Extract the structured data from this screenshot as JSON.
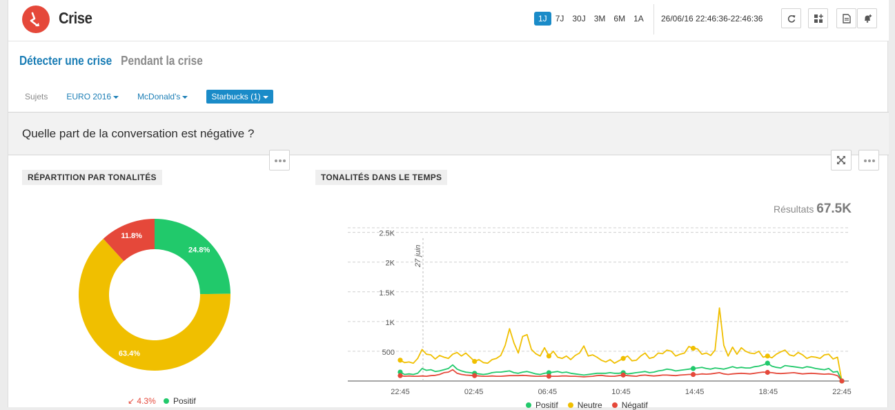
{
  "header": {
    "title": "Crise",
    "periods": [
      "1J",
      "7J",
      "30J",
      "3M",
      "6M",
      "1A"
    ],
    "active_period": "1J",
    "date_range": "26/06/16 22:46:36-22:46:36"
  },
  "tabs": [
    {
      "label": "Détecter une crise",
      "active": true
    },
    {
      "label": "Pendant la crise",
      "active": false
    }
  ],
  "subjects": {
    "label": "Sujets",
    "filters": [
      {
        "label": "EURO 2016",
        "active": false
      },
      {
        "label": "McDonald's",
        "active": false
      },
      {
        "label": "Starbucks (1)",
        "active": true
      }
    ]
  },
  "question": "Quelle part de la conversation est négative ?",
  "panels": {
    "left_title": "RÉPARTITION PAR TONALITÉS",
    "right_title": "TONALITÉS DANS LE TEMPS",
    "results_label": "Résultats",
    "results_value": "67.5K",
    "trend_value": "4.3%",
    "left_legend": "Positif"
  },
  "colors": {
    "positive": "#21c96b",
    "neutral": "#f0bf00",
    "negative": "#e5483a",
    "accent": "#1a8bc8"
  },
  "chart_data": [
    {
      "type": "pie",
      "title": "RÉPARTITION PAR TONALITÉS",
      "slices": [
        {
          "name": "Positif",
          "value": 24.8,
          "label": "24.8%",
          "color": "#21c96b"
        },
        {
          "name": "Neutre",
          "value": 63.4,
          "label": "63.4%",
          "color": "#f0bf00"
        },
        {
          "name": "Négatif",
          "value": 11.8,
          "label": "11.8%",
          "color": "#e5483a"
        }
      ]
    },
    {
      "type": "line",
      "title": "TONALITÉS DANS LE TEMPS",
      "x_ticks": [
        "22:45",
        "02:45",
        "06:45",
        "10:45",
        "14:45",
        "18:45",
        "22:45"
      ],
      "y_ticks": [
        "500",
        "1K",
        "1.5K",
        "2K",
        "2.5K"
      ],
      "ylim": [
        0,
        2500
      ],
      "annotation": "27 juin",
      "legend": [
        "Positif",
        "Neutre",
        "Négatif"
      ],
      "series": [
        {
          "name": "Neutre",
          "color": "#f0bf00",
          "values": [
            350,
            310,
            320,
            300,
            380,
            530,
            450,
            440,
            370,
            430,
            400,
            380,
            450,
            480,
            420,
            470,
            400,
            330,
            360,
            310,
            300,
            360,
            380,
            430,
            600,
            880,
            640,
            470,
            750,
            780,
            530,
            460,
            420,
            560,
            420,
            500,
            400,
            380,
            420,
            360,
            430,
            470,
            590,
            420,
            440,
            400,
            350,
            320,
            360,
            300,
            340,
            380,
            420,
            340,
            350,
            420,
            470,
            380,
            400,
            470,
            460,
            520,
            500,
            420,
            450,
            470,
            580,
            550,
            540,
            450,
            470,
            430,
            520,
            1230,
            600,
            420,
            570,
            450,
            560,
            500,
            470,
            460,
            500,
            400,
            420,
            390,
            450,
            490,
            520,
            440,
            420,
            480,
            440,
            380,
            410,
            400,
            380,
            440,
            450,
            370,
            400,
            0
          ]
        },
        {
          "name": "Positif",
          "color": "#21c96b",
          "values": [
            150,
            110,
            120,
            110,
            130,
            210,
            180,
            190,
            160,
            170,
            190,
            210,
            270,
            200,
            170,
            150,
            140,
            130,
            120,
            110,
            120,
            140,
            150,
            150,
            160,
            170,
            140,
            130,
            150,
            160,
            140,
            120,
            110,
            130,
            140,
            150,
            160,
            140,
            150,
            130,
            120,
            110,
            100,
            110,
            120,
            130,
            130,
            130,
            140,
            130,
            130,
            140,
            120,
            130,
            140,
            150,
            160,
            140,
            150,
            170,
            180,
            200,
            190,
            170,
            180,
            190,
            200,
            210,
            220,
            230,
            210,
            200,
            220,
            210,
            200,
            220,
            240,
            220,
            230,
            220,
            220,
            240,
            250,
            270,
            300,
            250,
            230,
            220,
            260,
            250,
            240,
            230,
            220,
            240,
            230,
            210,
            200,
            190,
            210,
            150,
            160,
            0
          ]
        },
        {
          "name": "Négatif",
          "color": "#e5483a",
          "values": [
            90,
            80,
            85,
            80,
            80,
            85,
            80,
            90,
            95,
            110,
            140,
            150,
            190,
            130,
            110,
            100,
            95,
            90,
            85,
            80,
            80,
            85,
            80,
            80,
            85,
            90,
            90,
            90,
            95,
            90,
            85,
            80,
            80,
            85,
            80,
            80,
            80,
            85,
            85,
            80,
            80,
            75,
            70,
            75,
            80,
            90,
            95,
            85,
            80,
            80,
            90,
            100,
            90,
            85,
            80,
            95,
            100,
            90,
            85,
            90,
            100,
            100,
            95,
            90,
            100,
            105,
            110,
            110,
            110,
            120,
            115,
            120,
            130,
            140,
            120,
            110,
            120,
            125,
            130,
            125,
            120,
            130,
            140,
            150,
            145,
            140,
            130,
            125,
            130,
            135,
            140,
            130,
            120,
            125,
            130,
            125,
            120,
            115,
            120,
            110,
            90,
            0
          ]
        }
      ]
    }
  ]
}
